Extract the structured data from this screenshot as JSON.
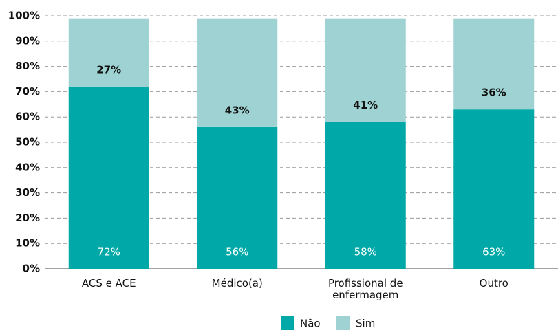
{
  "chart_data": {
    "type": "stacked_bar",
    "categories": [
      "ACS e ACE",
      "Médico(a)",
      "Profissional de enfermagem",
      "Outro"
    ],
    "series": [
      {
        "name": "Não",
        "color": "#00a9a8",
        "values": [
          72,
          56,
          58,
          63
        ],
        "value_labels": [
          "72%",
          "56%",
          "58%",
          "63%"
        ]
      },
      {
        "name": "Sim",
        "color": "#9fd3d3",
        "values": [
          27,
          43,
          41,
          36
        ],
        "value_labels": [
          "27%",
          "43%",
          "41%",
          "36%"
        ]
      }
    ],
    "ylim": [
      0,
      100
    ],
    "yticks": [
      {
        "value": 0,
        "label": "0%"
      },
      {
        "value": 10,
        "label": "10%"
      },
      {
        "value": 20,
        "label": "20%"
      },
      {
        "value": 30,
        "label": "30%"
      },
      {
        "value": 40,
        "label": "40%"
      },
      {
        "value": 50,
        "label": "50%"
      },
      {
        "value": 60,
        "label": "60%"
      },
      {
        "value": 70,
        "label": "70%"
      },
      {
        "value": 80,
        "label": "80%"
      },
      {
        "value": 90,
        "label": "90%"
      },
      {
        "value": 100,
        "label": "100%"
      }
    ],
    "grid": true
  }
}
